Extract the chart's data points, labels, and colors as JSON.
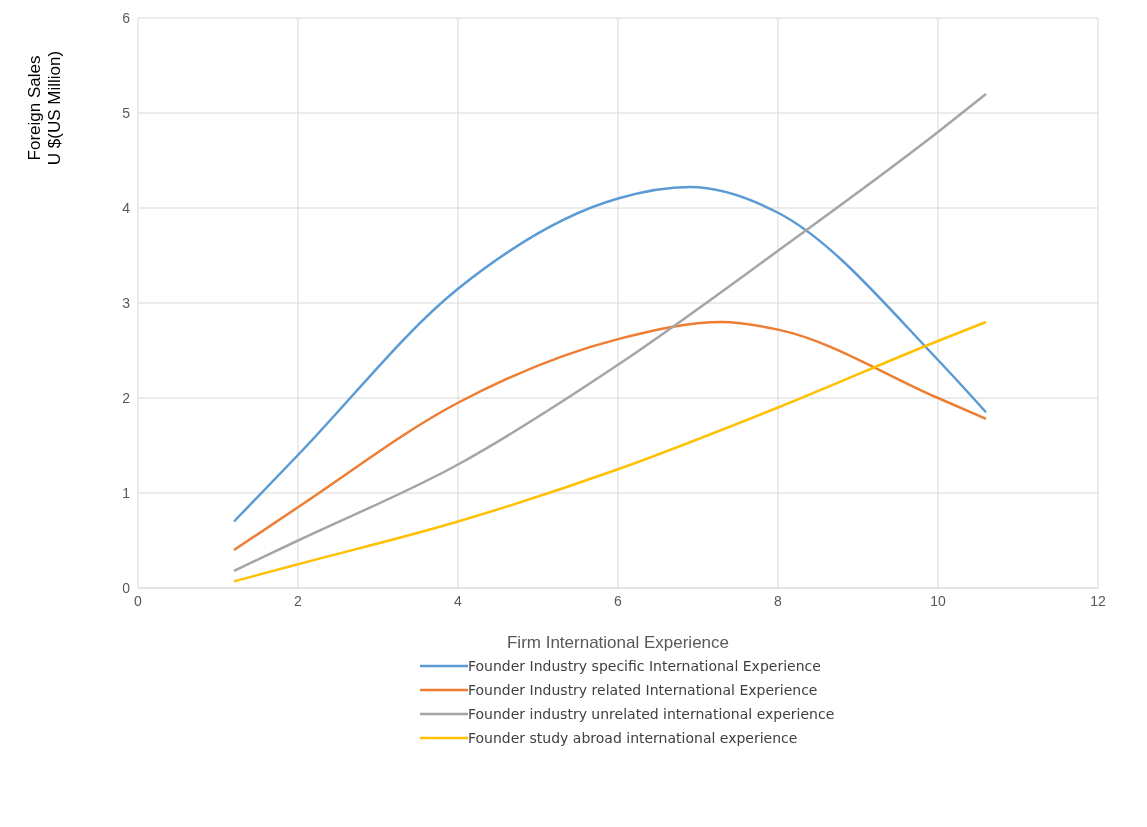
{
  "chart_data": {
    "type": "line",
    "xlabel": "Firm International Experience",
    "ylabel": "Foreign Sales\nU $(US Million)",
    "xlim": [
      0,
      12
    ],
    "xticks": [
      0,
      2,
      4,
      6,
      8,
      10,
      12
    ],
    "ylim": [
      0,
      6
    ],
    "yticks": [
      0,
      1,
      2,
      3,
      4,
      5,
      6
    ],
    "grid": true,
    "legend": "bottom",
    "marker": "none",
    "line_style": "solid",
    "series": [
      {
        "name": "Founder Industry specific International Experience",
        "color": "#5b9bd5",
        "x": [
          1.2,
          2,
          4,
          6,
          6.9,
          8,
          10,
          10.6
        ],
        "values": [
          0.7,
          1.4,
          3.15,
          4.1,
          4.22,
          3.95,
          2.4,
          1.85
        ]
      },
      {
        "name": "Founder Industry related International Experience",
        "color": "#ed7d31",
        "x": [
          1.2,
          2,
          4,
          6,
          7.3,
          8,
          10,
          10.6
        ],
        "values": [
          0.4,
          0.85,
          1.95,
          2.62,
          2.8,
          2.72,
          2.0,
          1.78
        ]
      },
      {
        "name": "Founder industry unrelated international experience",
        "color": "#a5a5a5",
        "x": [
          1.2,
          2,
          4,
          6,
          8,
          10,
          10.6
        ],
        "values": [
          0.18,
          0.5,
          1.3,
          2.35,
          3.55,
          4.8,
          5.2
        ]
      },
      {
        "name": "Founder study abroad international experience",
        "color": "#ffc000",
        "x": [
          1.2,
          2,
          4,
          6,
          8,
          10,
          10.6
        ],
        "values": [
          0.07,
          0.25,
          0.7,
          1.25,
          1.9,
          2.6,
          2.8
        ]
      }
    ]
  }
}
